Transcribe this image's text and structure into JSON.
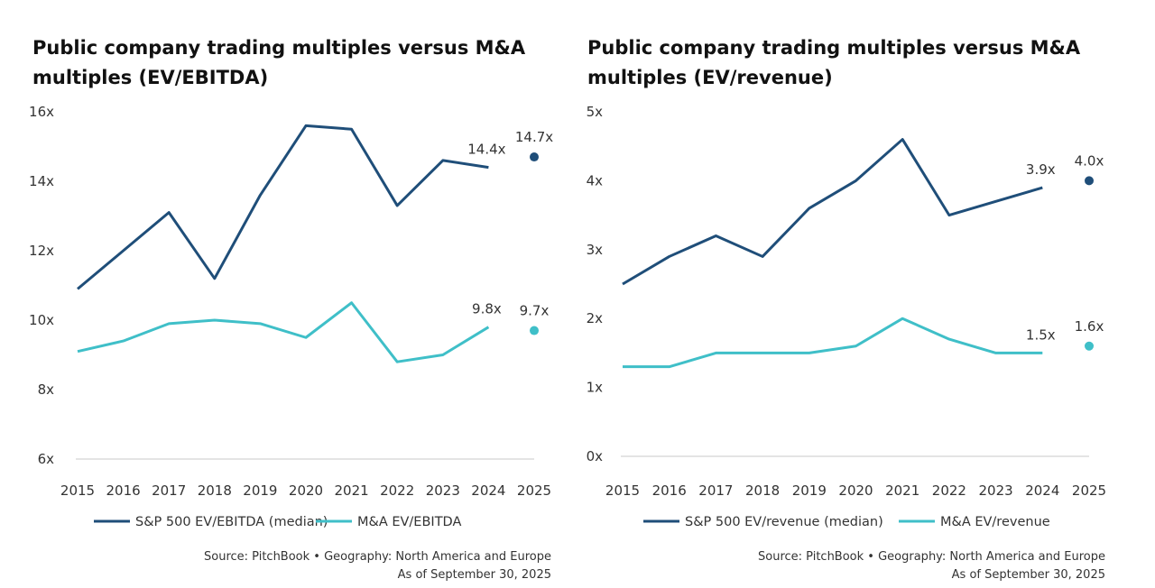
{
  "colors": {
    "sp500": "#1f4e79",
    "ma": "#3fbfc8",
    "baseline": "#c8c8c8"
  },
  "chart_data": [
    {
      "type": "line",
      "title": [
        "Public company trading multiples versus M&A",
        "multiples (EV/EBITDA)"
      ],
      "x": [
        "2015",
        "2016",
        "2017",
        "2018",
        "2019",
        "2020",
        "2021",
        "2022",
        "2023",
        "2024",
        "2025"
      ],
      "yticks": [
        "6x",
        "8x",
        "10x",
        "12x",
        "14x",
        "16x"
      ],
      "ylim": [
        6,
        16
      ],
      "series": [
        {
          "name": "S&P 500 EV/EBITDA (median)",
          "values": [
            10.9,
            12.0,
            13.1,
            11.2,
            13.6,
            15.6,
            15.5,
            13.3,
            14.6,
            14.4,
            14.7
          ],
          "labels": {
            "2024": "14.4x",
            "2025": "14.7x"
          }
        },
        {
          "name": "M&A EV/EBITDA",
          "values": [
            9.1,
            9.4,
            9.9,
            10.0,
            9.9,
            9.5,
            10.5,
            8.8,
            9.0,
            9.8,
            9.7
          ],
          "labels": {
            "2024": "9.8x",
            "2025": "9.7x"
          }
        }
      ],
      "note": "2025 values shown as standalone points",
      "source": "Source: PitchBook  •  Geography: North America and Europe",
      "asof": "As of September 30, 2025"
    },
    {
      "type": "line",
      "title": [
        "Public company trading multiples versus M&A",
        "multiples (EV/revenue)"
      ],
      "x": [
        "2015",
        "2016",
        "2017",
        "2018",
        "2019",
        "2020",
        "2021",
        "2022",
        "2023",
        "2024",
        "2025"
      ],
      "yticks": [
        "0x",
        "1x",
        "2x",
        "3x",
        "4x",
        "5x"
      ],
      "ylim": [
        0,
        5
      ],
      "series": [
        {
          "name": "S&P 500 EV/revenue (median)",
          "values": [
            2.5,
            2.9,
            3.2,
            2.9,
            3.6,
            4.0,
            4.6,
            3.5,
            3.7,
            3.9,
            4.0
          ],
          "labels": {
            "2024": "3.9x",
            "2025": "4.0x"
          }
        },
        {
          "name": "M&A EV/revenue",
          "values": [
            1.3,
            1.3,
            1.5,
            1.5,
            1.5,
            1.6,
            2.0,
            1.7,
            1.5,
            1.5,
            1.6
          ],
          "labels": {
            "2024": "1.5x",
            "2025": "1.6x"
          }
        }
      ],
      "source": "Source: PitchBook  •  Geography: North America and Europe",
      "asof": "As of September 30, 2025"
    }
  ]
}
